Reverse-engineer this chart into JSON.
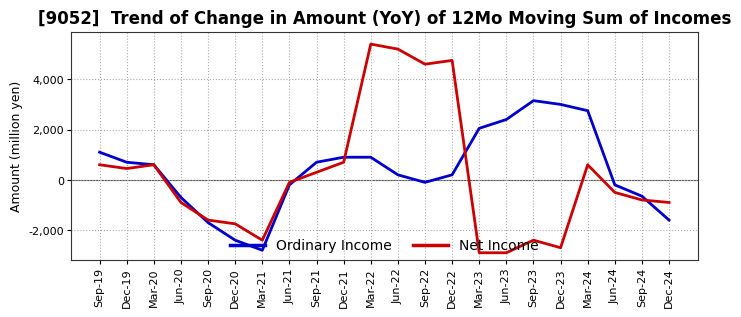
{
  "title": "[9052]  Trend of Change in Amount (YoY) of 12Mo Moving Sum of Incomes",
  "ylabel": "Amount (million yen)",
  "x_labels": [
    "Sep-19",
    "Dec-19",
    "Mar-20",
    "Jun-20",
    "Sep-20",
    "Dec-20",
    "Mar-21",
    "Jun-21",
    "Sep-21",
    "Dec-21",
    "Mar-22",
    "Jun-22",
    "Sep-22",
    "Dec-22",
    "Mar-23",
    "Jun-23",
    "Sep-23",
    "Dec-23",
    "Mar-24",
    "Jun-24",
    "Sep-24",
    "Dec-24"
  ],
  "ordinary_income": [
    1100,
    700,
    600,
    -700,
    -1700,
    -2400,
    -2800,
    -200,
    700,
    900,
    900,
    200,
    -100,
    200,
    2050,
    2400,
    3150,
    3000,
    2750,
    -200,
    -650,
    -1600
  ],
  "net_income": [
    600,
    450,
    600,
    -900,
    -1600,
    -1750,
    -2400,
    -100,
    300,
    700,
    5400,
    5200,
    4600,
    4750,
    -2900,
    -2900,
    -2400,
    -2700,
    600,
    -500,
    -800,
    -900
  ],
  "ordinary_color": "#0000cc",
  "net_color": "#cc0000",
  "ylim": [
    -3200,
    5900
  ],
  "yticks": [
    -2000,
    0,
    2000,
    4000
  ],
  "background_color": "#ffffff",
  "grid_color": "#aaaaaa",
  "legend_ordinary": "Ordinary Income",
  "legend_net": "Net Income",
  "linewidth": 2.0,
  "title_fontsize": 12,
  "ylabel_fontsize": 9,
  "tick_fontsize": 8
}
